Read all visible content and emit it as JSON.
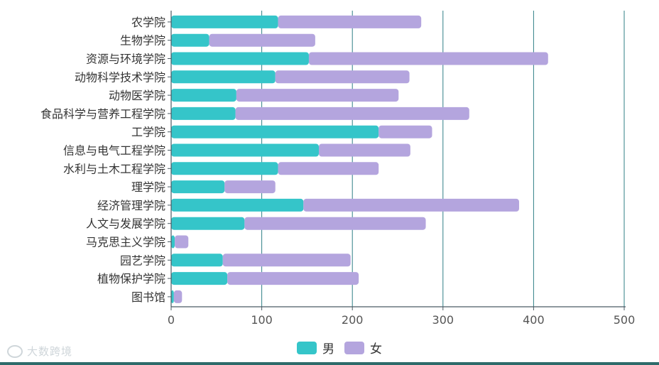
{
  "chart_data": {
    "type": "bar",
    "orientation": "horizontal",
    "stacked": true,
    "categories": [
      "农学院",
      "生物学院",
      "资源与环境学院",
      "动物科学技术学院",
      "动物医学院",
      "食品科学与营养工程学院",
      "工学院",
      "信息与电气工程学院",
      "水利与土木工程学院",
      "理学院",
      "经济管理学院",
      "人文与发展学院",
      "马克思主义学院",
      "园艺学院",
      "植物保护学院",
      "图书馆"
    ],
    "series": [
      {
        "name": "男",
        "color": "#35c5c9",
        "values": [
          118,
          42,
          152,
          115,
          72,
          71,
          229,
          163,
          118,
          59,
          146,
          81,
          4,
          57,
          62,
          3
        ]
      },
      {
        "name": "女",
        "color": "#b4a5de",
        "values": [
          158,
          117,
          264,
          148,
          179,
          258,
          59,
          101,
          111,
          56,
          238,
          200,
          15,
          141,
          145,
          9
        ]
      }
    ],
    "xticks": [
      0,
      100,
      200,
      300,
      400,
      500
    ],
    "xlim": [
      0,
      500
    ],
    "grid": true,
    "legend_position": "bottom-center"
  },
  "watermark": {
    "text": "大数跨境"
  }
}
